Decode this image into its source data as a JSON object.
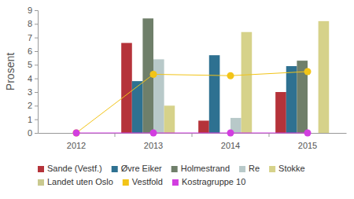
{
  "chart_data": {
    "type": "bar",
    "y_label": "Prosent",
    "categories": [
      "2012",
      "2013",
      "2014",
      "2015"
    ],
    "series": [
      {
        "name": "Sande (Vestf.)",
        "color": "#b5333a",
        "type": "bar",
        "values": [
          null,
          6.6,
          0.9,
          3.0
        ]
      },
      {
        "name": "Øvre Eiker",
        "color": "#2e7191",
        "type": "bar",
        "values": [
          null,
          3.8,
          5.7,
          4.9
        ]
      },
      {
        "name": "Holmestrand",
        "color": "#6f7f6a",
        "type": "bar",
        "values": [
          null,
          8.4,
          null,
          5.3
        ]
      },
      {
        "name": "Re",
        "color": "#b8c9c9",
        "type": "bar",
        "values": [
          null,
          5.4,
          1.1,
          null
        ]
      },
      {
        "name": "Stokke",
        "color": "#d6d28a",
        "type": "bar",
        "values": [
          null,
          2.0,
          7.4,
          8.2
        ]
      },
      {
        "name": "Landet uten Oslo",
        "color": "#c9c98f",
        "type": "bar",
        "values": [
          null,
          null,
          null,
          null
        ]
      },
      {
        "name": "Vestfold",
        "color": "#f2c418",
        "type": "line",
        "marker": "circle",
        "values": [
          0,
          4.3,
          4.2,
          4.5
        ]
      },
      {
        "name": "Kostragruppe 10",
        "color": "#d23ee0",
        "type": "line",
        "marker": "circle",
        "values": [
          0,
          0,
          0,
          0
        ]
      }
    ],
    "ylim": [
      0,
      9
    ],
    "yticks": [
      0,
      1,
      2,
      3,
      4,
      5,
      6,
      7,
      8,
      9
    ],
    "grid": false,
    "legend": "bottom"
  }
}
